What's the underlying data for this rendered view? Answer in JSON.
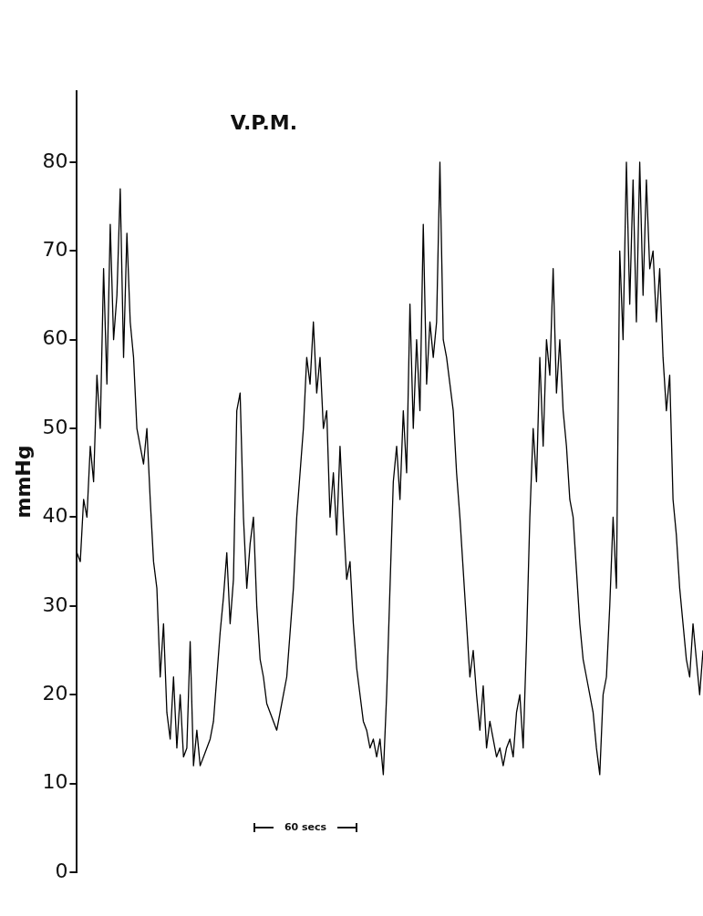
{
  "chart_data": {
    "type": "line",
    "title": "V.P.M.",
    "ylabel": "mmHg",
    "annotations": [
      "60 secs"
    ],
    "categories": [
      null,
      null,
      null,
      null,
      null,
      null,
      null,
      null,
      null,
      null,
      null,
      null,
      null,
      null,
      null,
      null,
      null,
      null,
      null,
      null,
      null,
      null,
      null,
      null,
      null,
      null,
      null,
      null,
      null,
      null,
      null,
      null,
      null,
      null,
      null,
      null,
      null,
      null,
      null,
      null,
      null,
      null,
      null,
      null,
      null,
      null,
      null,
      null,
      null,
      null,
      null,
      null,
      null,
      null,
      null,
      null,
      null,
      null,
      null,
      null,
      null,
      null,
      null,
      null,
      null,
      null,
      null,
      null,
      null,
      null,
      null,
      null,
      null,
      null,
      null,
      null,
      null,
      null,
      null,
      null,
      null,
      null,
      null,
      null,
      null,
      null,
      null,
      null,
      null,
      null,
      null,
      null,
      null,
      null,
      null,
      null,
      null,
      null,
      null,
      null,
      null,
      null,
      null,
      null,
      null,
      null,
      null,
      null,
      null,
      null,
      null,
      null,
      null,
      null,
      null,
      null,
      null,
      null,
      null,
      null,
      null,
      null,
      null,
      null,
      null,
      null,
      null,
      null,
      null,
      null,
      null,
      null,
      null,
      null,
      null,
      null,
      null,
      null,
      null,
      null,
      null,
      null,
      null,
      null,
      null,
      null,
      null,
      null,
      null,
      null,
      null,
      null,
      null,
      null,
      null,
      null,
      null,
      null,
      null,
      null,
      null,
      null,
      null,
      null,
      null,
      null,
      null,
      null,
      null,
      null,
      null,
      null,
      null,
      null,
      null,
      null,
      null,
      null,
      null,
      null,
      null,
      null,
      null,
      null,
      null,
      null,
      null,
      null,
      null
    ],
    "series": [
      {
        "color": "#000000",
        "values": [
          36,
          35,
          42,
          40,
          48,
          44,
          56,
          50,
          68,
          55,
          73,
          60,
          65,
          77,
          58,
          72,
          62,
          58,
          50,
          48,
          46,
          50,
          42,
          35,
          32,
          22,
          28,
          18,
          15,
          22,
          14,
          20,
          13,
          14,
          26,
          12,
          16,
          12,
          13,
          14,
          15,
          17,
          22,
          27,
          31,
          36,
          28,
          33,
          52,
          54,
          40,
          32,
          37,
          40,
          30,
          24,
          22,
          19,
          18,
          17,
          16,
          18,
          20,
          22,
          27,
          32,
          40,
          45,
          50,
          58,
          55,
          62,
          54,
          58,
          50,
          52,
          40,
          45,
          38,
          48,
          40,
          33,
          35,
          28,
          23,
          20,
          17,
          16,
          14,
          15,
          13,
          15,
          11,
          20,
          32,
          44,
          48,
          42,
          52,
          45,
          64,
          50,
          60,
          52,
          73,
          55,
          62,
          58,
          62,
          80,
          60,
          58,
          55,
          52,
          45,
          40,
          34,
          28,
          22,
          25,
          20,
          16,
          21,
          14,
          17,
          15,
          13,
          14,
          12,
          14,
          15,
          13,
          18,
          20,
          14,
          26,
          40,
          50,
          44,
          58,
          48,
          60,
          56,
          68,
          54,
          60,
          52,
          48,
          42,
          40,
          34,
          28,
          24,
          22,
          20,
          18,
          14,
          11,
          20,
          22,
          30,
          40,
          32,
          70,
          60,
          80,
          64,
          78,
          62,
          80,
          65,
          78,
          68,
          70,
          62,
          68,
          58,
          52,
          56,
          42,
          38,
          32,
          28,
          24,
          22,
          28,
          24,
          20,
          25
        ]
      }
    ],
    "ylim": [
      0,
      88
    ],
    "yticks": [
      0,
      10,
      20,
      30,
      40,
      50,
      60,
      70,
      80
    ],
    "grid": false,
    "legend": false,
    "marker": "none",
    "line_style": "solid",
    "tick_labels": "y"
  }
}
